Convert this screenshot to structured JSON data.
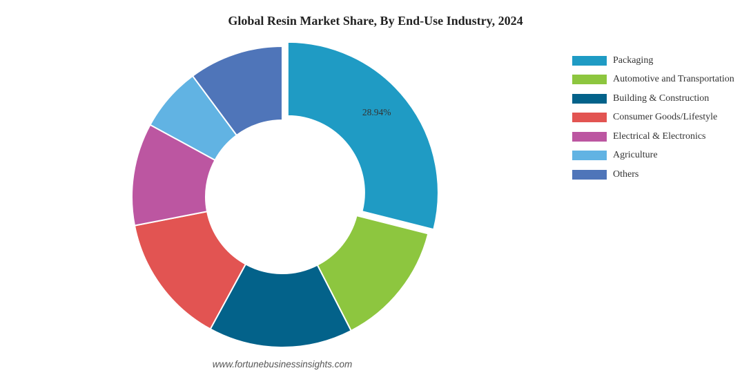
{
  "chart_data": {
    "type": "pie",
    "title": "Global Resin Market Share, By End-Use Industry, 2024",
    "donut": true,
    "categories": [
      "Packaging",
      "Automotive and Transportation",
      "Building & Construction",
      "Consumer Goods/Lifestyle",
      "Electrical & Electronics",
      "Agriculture",
      "Others"
    ],
    "values": [
      28.94,
      13.5,
      15.5,
      14.0,
      11.0,
      6.9,
      10.16
    ],
    "colors": [
      "#1f9bc4",
      "#8dc63f",
      "#03628a",
      "#e25452",
      "#bc56a1",
      "#61b3e3",
      "#4f75b9"
    ],
    "data_labels": [
      "28.94%",
      "",
      "",
      "",
      "",
      "",
      ""
    ],
    "legend_position": "right"
  },
  "watermark": "www.fortunebusinessinsights.com"
}
